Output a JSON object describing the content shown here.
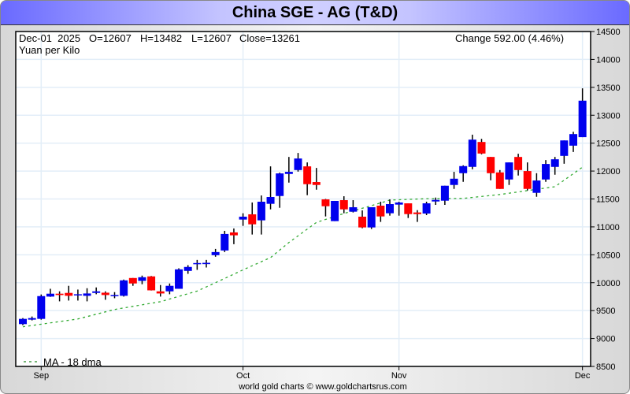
{
  "title": "China SGE - AG (T&D)",
  "info": {
    "date": "Dec-01  2025",
    "open": "O=12607",
    "high": "H=13482",
    "low": "L=12607",
    "close": "Close=13261",
    "units": "Yuan per Kilo",
    "change": "Change 592.00 (4.46%)"
  },
  "footer": "world gold charts © www.goldchartsrus.com",
  "chart_data": {
    "type": "candlestick",
    "title": "China SGE - AG (T&D)",
    "ylabel": "Yuan per Kilo",
    "ylim": [
      8500,
      14500
    ],
    "yticks": [
      8500,
      9000,
      9500,
      10000,
      10500,
      11000,
      11500,
      12000,
      12500,
      13000,
      13500,
      14000,
      14500
    ],
    "xticks": [
      {
        "label": "Sep",
        "index": 2
      },
      {
        "label": "Oct",
        "index": 24
      },
      {
        "label": "Nov",
        "index": 41
      },
      {
        "label": "Dec",
        "index": 61
      }
    ],
    "grid": true,
    "colors": {
      "up": "#0000ee",
      "down": "#ff0000",
      "ma": "#33aa33"
    },
    "ohlc_columns": [
      "open",
      "high",
      "low",
      "close"
    ],
    "candles": [
      [
        9258,
        9366,
        9239,
        9352
      ],
      [
        9338,
        9394,
        9324,
        9366
      ],
      [
        9352,
        9789,
        9338,
        9760
      ],
      [
        9751,
        9891,
        9746,
        9803
      ],
      [
        9803,
        9845,
        9666,
        9779
      ],
      [
        9817,
        9944,
        9680,
        9765
      ],
      [
        9779,
        9877,
        9680,
        9793
      ],
      [
        9765,
        9901,
        9666,
        9807
      ],
      [
        9817,
        9915,
        9793,
        9845
      ],
      [
        9821,
        9845,
        9694,
        9779
      ],
      [
        9765,
        9831,
        9722,
        9779
      ],
      [
        9765,
        10056,
        9751,
        10042
      ],
      [
        10084,
        10084,
        9944,
        9986
      ],
      [
        10032,
        10127,
        9972,
        10098
      ],
      [
        10113,
        10120,
        9860,
        9863
      ],
      [
        9845,
        9958,
        9751,
        9807
      ],
      [
        9845,
        9986,
        9793,
        9944
      ],
      [
        9891,
        10258,
        9891,
        10239
      ],
      [
        10211,
        10314,
        10159,
        10282
      ],
      [
        10338,
        10408,
        10230,
        10352
      ],
      [
        10333,
        10408,
        10272,
        10356
      ],
      [
        10493,
        10605,
        10465,
        10549
      ],
      [
        10577,
        10929,
        10549,
        10873
      ],
      [
        10901,
        10972,
        10690,
        10849
      ],
      [
        11131,
        11244,
        11018,
        11183
      ],
      [
        11225,
        11437,
        10863,
        11046
      ],
      [
        11117,
        11563,
        10863,
        11451
      ],
      [
        11413,
        12084,
        11314,
        11535
      ],
      [
        11553,
        11972,
        11342,
        11958
      ],
      [
        11948,
        12253,
        11793,
        11986
      ],
      [
        12018,
        12324,
        11990,
        12225
      ],
      [
        12084,
        12155,
        11568,
        11765
      ],
      [
        11803,
        12056,
        11666,
        11751
      ],
      [
        11493,
        11500,
        11187,
        11370
      ],
      [
        11103,
        11465,
        11103,
        11465
      ],
      [
        11479,
        11549,
        11244,
        11314
      ],
      [
        11272,
        11479,
        11258,
        11352
      ],
      [
        11183,
        11296,
        10976,
        10990
      ],
      [
        10990,
        11352,
        10962,
        11352
      ],
      [
        11380,
        11451,
        11089,
        11187
      ],
      [
        11244,
        11493,
        11201,
        11408
      ],
      [
        11399,
        11451,
        11201,
        11437
      ],
      [
        11422,
        11422,
        11159,
        11229
      ],
      [
        11258,
        11300,
        11089,
        11229
      ],
      [
        11239,
        11451,
        11211,
        11422
      ],
      [
        11455,
        11525,
        11394,
        11483
      ],
      [
        11469,
        11737,
        11394,
        11737
      ],
      [
        11751,
        11986,
        11680,
        11863
      ],
      [
        11962,
        12103,
        11807,
        12089
      ],
      [
        12075,
        12652,
        12032,
        12563
      ],
      [
        12521,
        12577,
        12300,
        12314
      ],
      [
        12253,
        12253,
        11835,
        11962
      ],
      [
        11976,
        12018,
        11680,
        11680
      ],
      [
        11849,
        12155,
        11751,
        12155
      ],
      [
        12253,
        12310,
        11920,
        12018
      ],
      [
        12000,
        12155,
        11652,
        11680
      ],
      [
        11610,
        11962,
        11539,
        11831
      ],
      [
        11849,
        12197,
        11807,
        12127
      ],
      [
        12075,
        12253,
        11934,
        12211
      ],
      [
        12272,
        12549,
        12131,
        12549
      ],
      [
        12455,
        12704,
        12342,
        12662
      ],
      [
        12607,
        13482,
        12607,
        13261
      ]
    ],
    "ma_label": "MA - 18 dma",
    "ma_points": [
      [
        0,
        9210
      ],
      [
        6,
        9350
      ],
      [
        10,
        9520
      ],
      [
        15,
        9660
      ],
      [
        19,
        9850
      ],
      [
        21,
        10000
      ],
      [
        24,
        10230
      ],
      [
        27,
        10450
      ],
      [
        29,
        10720
      ],
      [
        32,
        11080
      ],
      [
        35,
        11240
      ],
      [
        38,
        11380
      ],
      [
        40,
        11480
      ],
      [
        44,
        11505
      ],
      [
        48,
        11510
      ],
      [
        52,
        11580
      ],
      [
        58,
        11720
      ],
      [
        61,
        12070
      ]
    ]
  }
}
